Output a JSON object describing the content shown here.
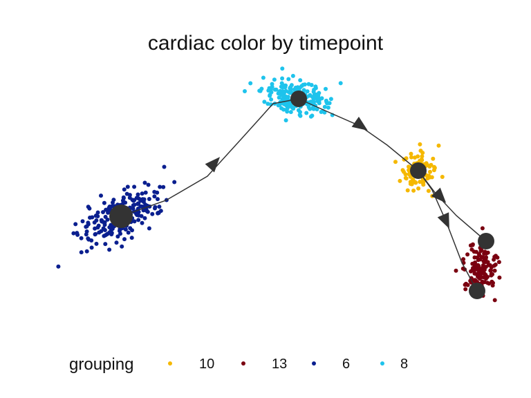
{
  "chart_data": {
    "type": "scatter",
    "title": "cardiac color by timepoint",
    "xlabel": "",
    "ylabel": "",
    "grid": false,
    "legend": {
      "title": "grouping",
      "position": "bottom",
      "entries": [
        {
          "label": "10",
          "color": "#F5B800"
        },
        {
          "label": "13",
          "color": "#7A0010"
        },
        {
          "label": "6",
          "color": "#0A1F8F"
        },
        {
          "label": "8",
          "color": "#1EC3EC"
        }
      ]
    },
    "series": [
      {
        "name": "6",
        "color": "#0A1F8F",
        "center": [
          175,
          313
        ],
        "spread": [
          60,
          28
        ],
        "angle": -30,
        "count": 230
      },
      {
        "name": "8",
        "color": "#1EC3EC",
        "center": [
          430,
          140
        ],
        "spread": [
          48,
          20
        ],
        "angle": 8,
        "count": 210
      },
      {
        "name": "10",
        "color": "#F5B800",
        "center": [
          605,
          250
        ],
        "spread": [
          22,
          22
        ],
        "angle": 45,
        "count": 110
      },
      {
        "name": "13",
        "color": "#7A0010",
        "center": [
          695,
          390
        ],
        "spread": [
          22,
          38
        ],
        "angle": 5,
        "count": 150
      }
    ],
    "trajectory_nodes": [
      {
        "id": "6",
        "x": 175,
        "y": 313
      },
      {
        "id": "8",
        "x": 432,
        "y": 143
      },
      {
        "id": "10",
        "x": 605,
        "y": 247
      },
      {
        "id": "13a",
        "x": 703,
        "y": 349
      },
      {
        "id": "13b",
        "x": 690,
        "y": 421
      }
    ],
    "trajectory_edges": [
      {
        "from": "6",
        "to": "8",
        "path": [
          [
            175,
            313
          ],
          [
            240,
            290
          ],
          [
            300,
            255
          ],
          [
            350,
            200
          ],
          [
            395,
            150
          ],
          [
            432,
            143
          ]
        ],
        "arrow_at": [
          310,
          236
        ]
      },
      {
        "from": "8",
        "to": "10",
        "path": [
          [
            432,
            143
          ],
          [
            470,
            160
          ],
          [
            520,
            182
          ],
          [
            560,
            210
          ],
          [
            605,
            247
          ]
        ],
        "arrow_at": [
          522,
          182
        ]
      },
      {
        "from": "10",
        "to": "13a",
        "path": [
          [
            605,
            247
          ],
          [
            630,
            280
          ],
          [
            660,
            312
          ],
          [
            703,
            349
          ]
        ],
        "arrow_at": [
          637,
          285
        ]
      },
      {
        "from": "10",
        "to": "13b",
        "path": [
          [
            605,
            247
          ],
          [
            625,
            275
          ],
          [
            645,
            320
          ],
          [
            668,
            380
          ],
          [
            690,
            421
          ]
        ],
        "arrow_at": [
          645,
          320
        ]
      }
    ]
  }
}
